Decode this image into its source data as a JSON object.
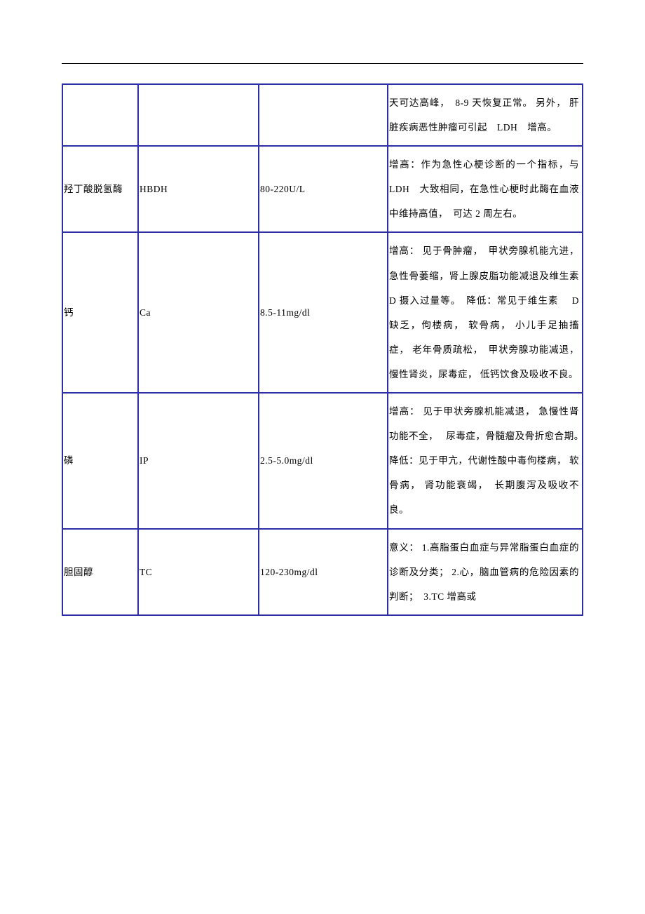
{
  "table": {
    "border_color": "#2e2ea8",
    "columns": [
      "name",
      "abbr",
      "range",
      "description"
    ],
    "rows": [
      {
        "name": "",
        "abbr": "",
        "range": "",
        "description": "天可达高峰，　8-9 天恢复正常。 另外， 肝脏疾病恶性肿瘤可引起　LDH　增高。"
      },
      {
        "name": "羟丁酸脱氢酶",
        "abbr": "HBDH",
        "range": "80-220U/L",
        "description": "增高：作为急性心梗诊断的一个指标，与　LDH　大致相同，在急性心梗时此酶在血液中维持高值，　可达 2 周左右。"
      },
      {
        "name": "钙",
        "abbr": "Ca",
        "range": "8.5-11mg/dl",
        "description": "增高： 见于骨肿瘤，　甲状旁腺机能亢进， 急性骨萎缩，肾上腺皮脂功能减退及维生素 D 摄入过量等。　降低：常见于维生素 　D 缺乏，佝楼病， 软骨病， 小儿手足抽搐症， 老年骨质疏松，　甲状旁腺功能减退， 慢性肾炎，尿毒症， 低钙饮食及吸收不良。"
      },
      {
        "name": "磷",
        "abbr": "IP",
        "range": "2.5-5.0mg/dl",
        "description": "增高： 见于甲状旁腺机能减退， 急慢性肾功能不全，　 尿毒症，骨髓瘤及骨折愈合期。　降低：见于甲亢，代谢性酸中毒佝楼病， 软骨病， 肾功能衰竭，　长期腹泻及吸收不良。"
      },
      {
        "name": "胆固醇",
        "abbr": "TC",
        "range": "120-230mg/dl",
        "description": "意义： 1.高脂蛋白血症与异常脂蛋白血症的诊断及分类； 2.心，脑血管病的危险因素的判断；　3.TC 增高或"
      }
    ]
  }
}
